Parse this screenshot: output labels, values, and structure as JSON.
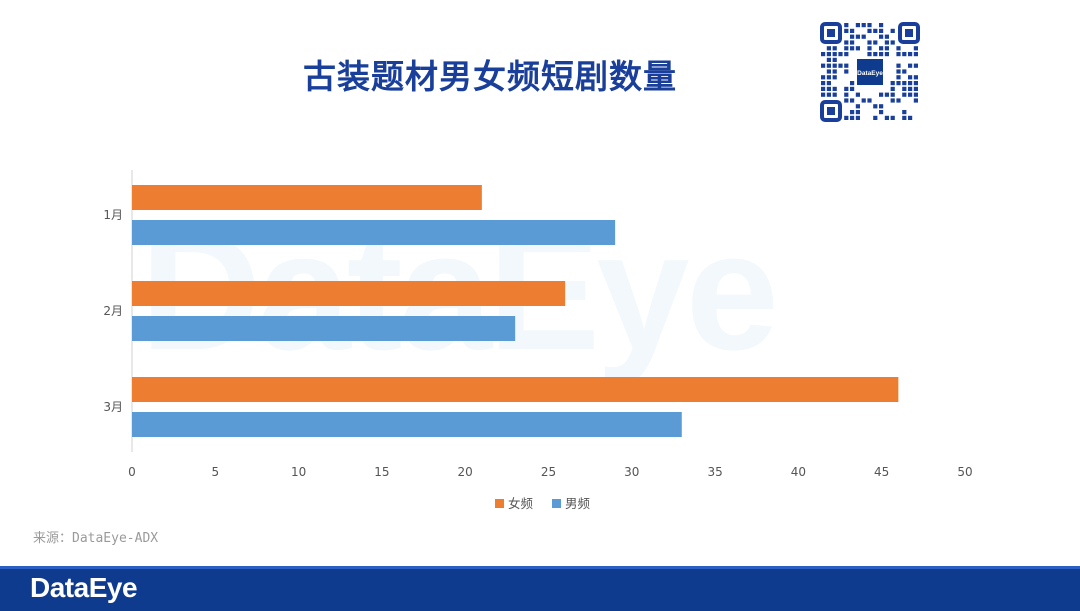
{
  "title": "古装题材男女频短剧数量",
  "source": "来源：DataEye-ADX",
  "watermark": "DataEye",
  "footer": {
    "logo": "DataEye"
  },
  "qr": {
    "center_label": "DataEye"
  },
  "colors": {
    "female": "#ED7D31",
    "male": "#5B9BD5",
    "title": "#1a3f9a",
    "footer": "#0f3b8f"
  },
  "chart_data": {
    "type": "bar",
    "orientation": "horizontal",
    "categories": [
      "1月",
      "2月",
      "3月"
    ],
    "series": [
      {
        "name": "女频",
        "color": "#ED7D31",
        "values": [
          21,
          26,
          46
        ]
      },
      {
        "name": "男频",
        "color": "#5B9BD5",
        "values": [
          29,
          23,
          33
        ]
      }
    ],
    "xlim": [
      0,
      50
    ],
    "xticks": [
      0,
      5,
      10,
      15,
      20,
      25,
      30,
      35,
      40,
      45,
      50
    ],
    "grid": false,
    "legend": "bottom"
  }
}
